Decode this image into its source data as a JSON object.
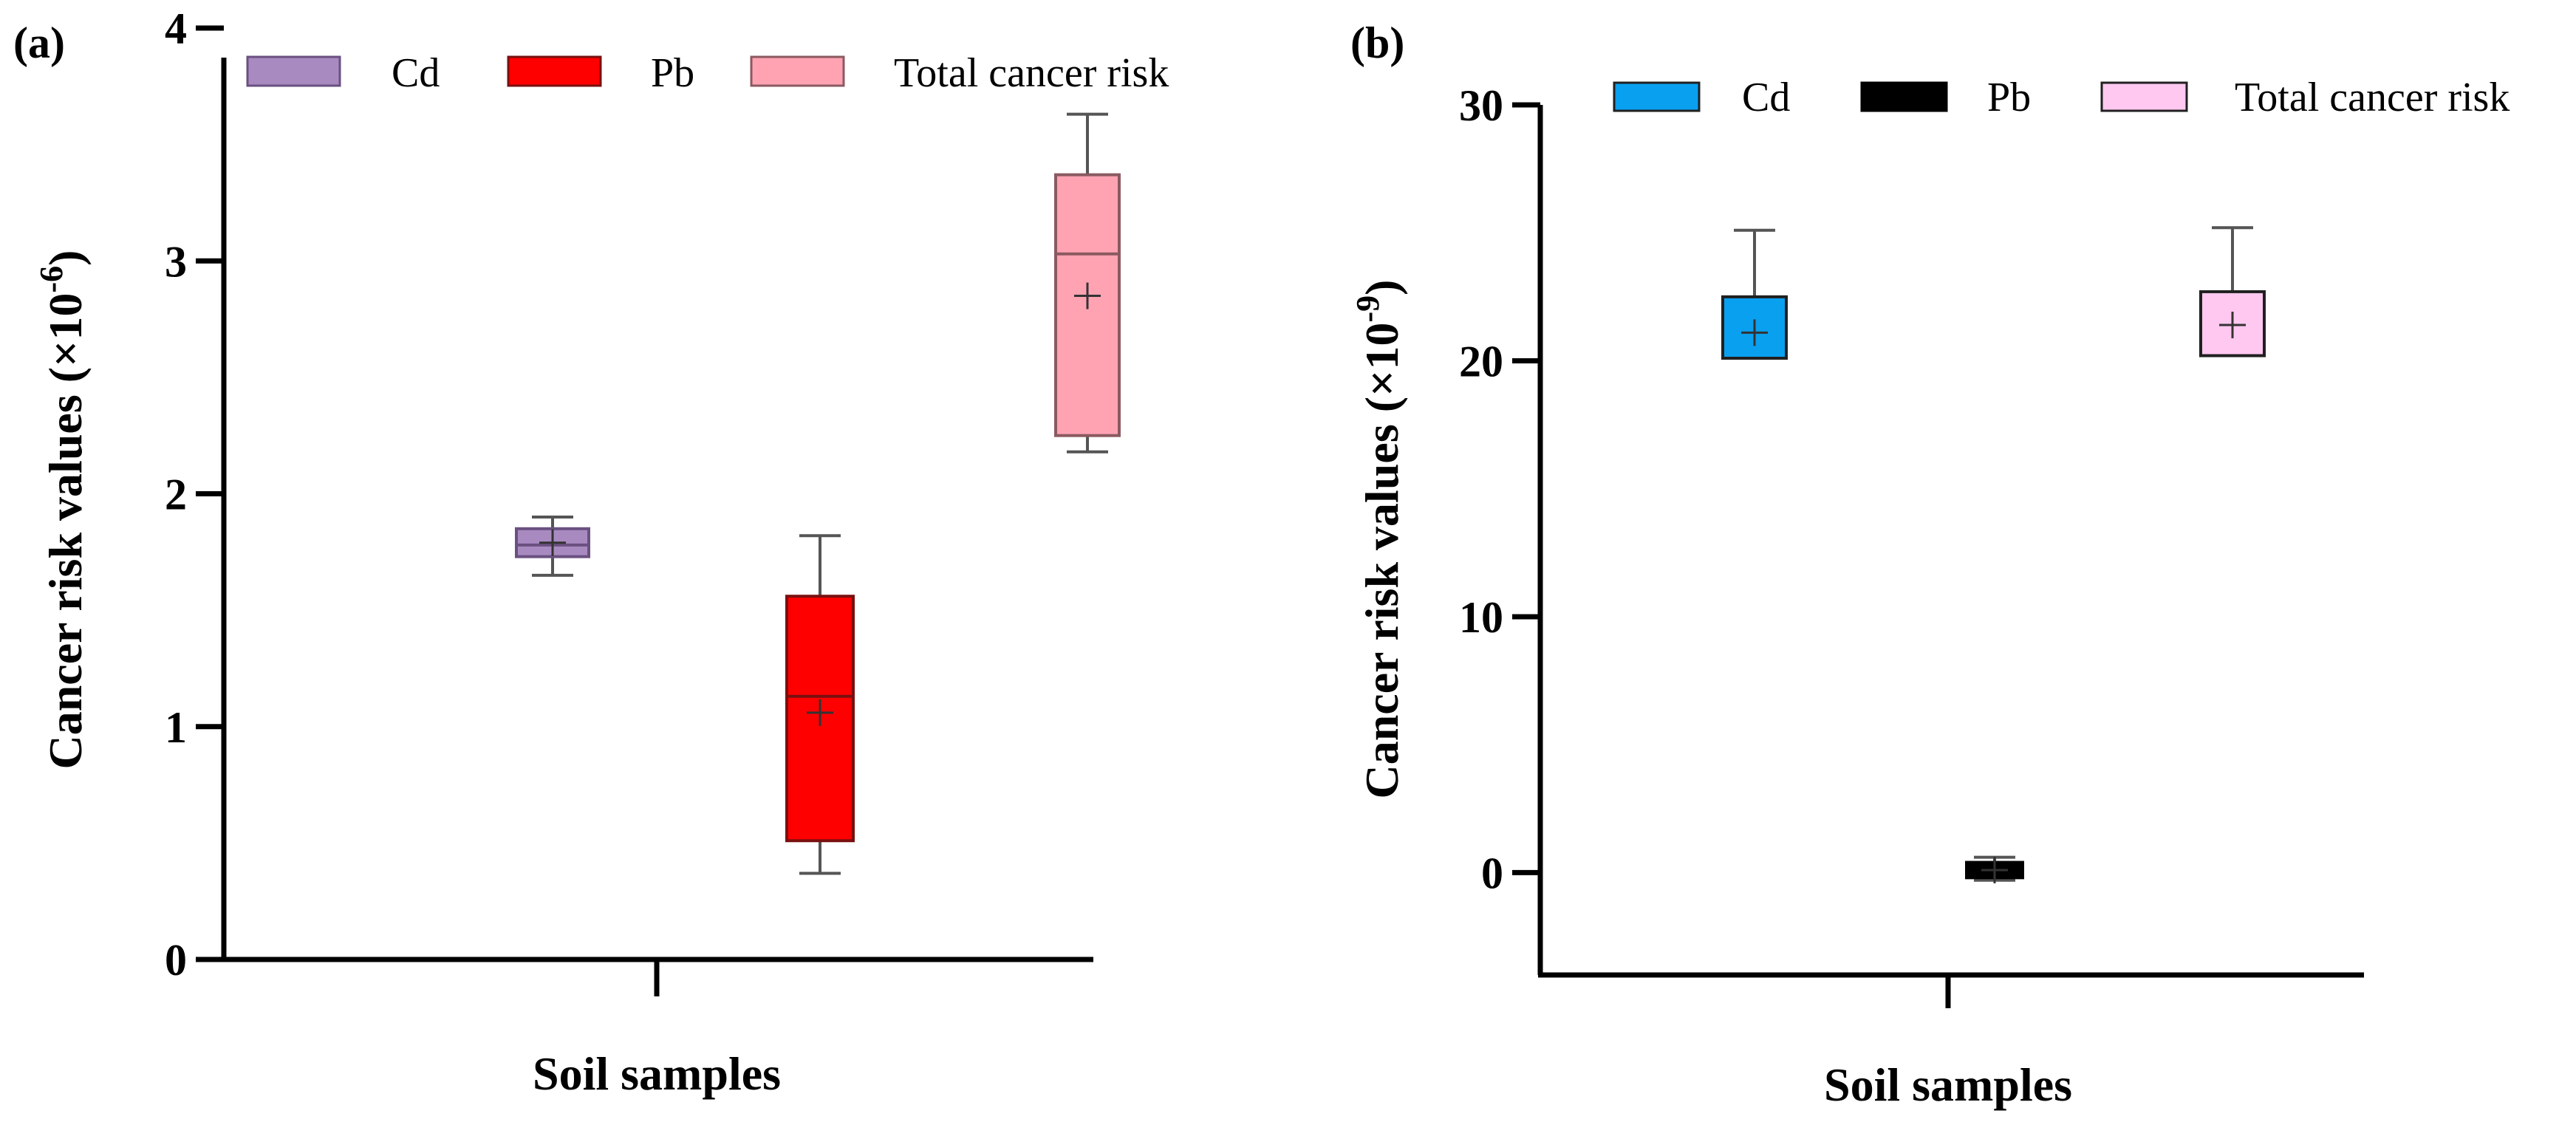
{
  "chart_data": [
    {
      "type": "box",
      "panel_label": "(a)",
      "xlabel": "Soil samples",
      "ylabel": "Cancer risk values (×10",
      "ylabel_exponent": "-6",
      "ylabel_close": ")",
      "ylim": [
        0,
        4
      ],
      "yticks": [
        "0",
        "1",
        "2",
        "3",
        "4"
      ],
      "ytick_values": [
        0,
        1,
        2,
        3,
        4
      ],
      "legend_position": "top",
      "series": [
        {
          "name": "Cd",
          "color": "#a88ac0",
          "edge": "#6a5080",
          "whisker_low": 1.65,
          "q1": 1.73,
          "median": 1.78,
          "q3": 1.85,
          "whisker_high": 1.9,
          "mean": 1.79
        },
        {
          "name": "Pb",
          "color": "#ff0000",
          "edge": "#7a1010",
          "whisker_low": 0.37,
          "q1": 0.51,
          "median": 1.13,
          "q3": 1.56,
          "whisker_high": 1.82,
          "mean": 1.06
        },
        {
          "name": "Total cancer risk",
          "color": "#ffa3b3",
          "edge": "#8a5a60",
          "whisker_low": 2.18,
          "q1": 2.25,
          "median": 3.03,
          "q3": 3.37,
          "whisker_high": 3.63,
          "mean": 2.85
        }
      ]
    },
    {
      "type": "box",
      "panel_label": "(b)",
      "xlabel": "Soil samples",
      "ylabel": "Cancer risk values (×10",
      "ylabel_exponent": "-9",
      "ylabel_close": ")",
      "ylim": [
        -4,
        30
      ],
      "yticks": [
        "0",
        "10",
        "20",
        "30"
      ],
      "ytick_values": [
        0,
        10,
        20,
        30
      ],
      "legend_position": "top",
      "series": [
        {
          "name": "Cd",
          "color": "#0aa0f0",
          "edge": "#202020",
          "whisker_low": 20.1,
          "q1": 20.1,
          "median": 20.1,
          "q3": 22.5,
          "whisker_high": 25.1,
          "mean": 21.1
        },
        {
          "name": "Pb",
          "color": "#000000",
          "edge": "#000000",
          "whisker_low": -0.3,
          "q1": -0.2,
          "median": 0.1,
          "q3": 0.4,
          "whisker_high": 0.6,
          "mean": 0.1
        },
        {
          "name": "Total cancer risk",
          "color": "#ffc8f0",
          "edge": "#202020",
          "whisker_low": 20.2,
          "q1": 20.2,
          "median": 20.2,
          "q3": 22.7,
          "whisker_high": 25.2,
          "mean": 21.4
        }
      ]
    }
  ]
}
